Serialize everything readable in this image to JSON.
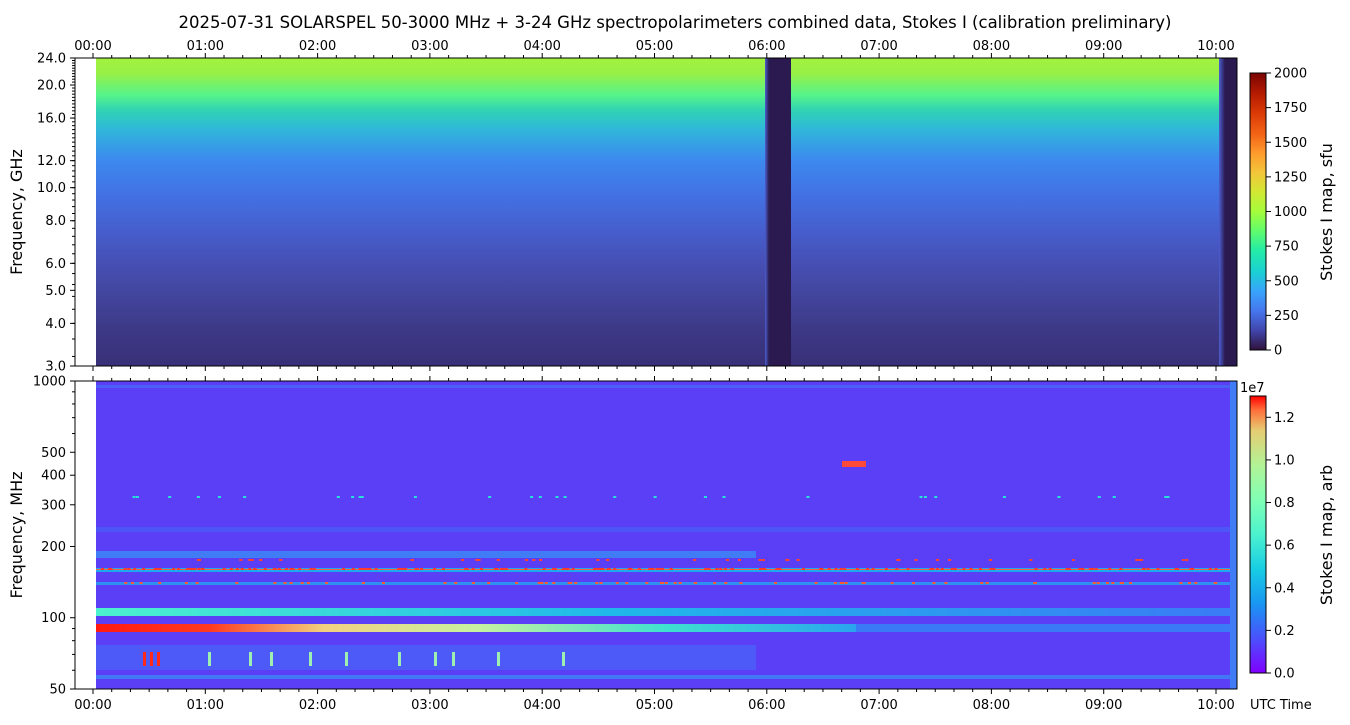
{
  "title": "2025-07-31  SOLARSPEL  50-3000 MHz  +  3-24 GHz  spectropolarimeters combined data,  Stokes I  (calibration preliminary)",
  "time_axis": {
    "labels": [
      "00:00",
      "01:00",
      "02:00",
      "03:00",
      "04:00",
      "05:00",
      "06:00",
      "07:00",
      "08:00",
      "09:00",
      "10:00"
    ],
    "bottom_title": "UTC Time"
  },
  "chart_data": [
    {
      "type": "heatmap",
      "panel": "top",
      "ylabel": "Frequency, GHz",
      "y_tick_labels": [
        "3.0",
        "4.0",
        "5.0",
        "6.0",
        "8.0",
        "10.0",
        "12.0",
        "16.0",
        "20.0",
        "24.0"
      ],
      "y_ticks": [
        3,
        4,
        5,
        6,
        8,
        10,
        12,
        16,
        20,
        24
      ],
      "y_scale": "log",
      "ylim": [
        3,
        24
      ],
      "xlim_hours": [
        0,
        10.22
      ],
      "colorbar": {
        "label": "Stokes I map, sfu",
        "ticks": [
          "0",
          "250",
          "500",
          "750",
          "1000",
          "1250",
          "1500",
          "1750",
          "2000"
        ],
        "range": [
          0,
          2000
        ],
        "colormap": "turbo"
      },
      "features": [
        {
          "name": "data gap",
          "start": "06:00",
          "end": "06:13"
        },
        {
          "name": "data end",
          "start": "10:09",
          "end": "10:13"
        }
      ]
    },
    {
      "type": "heatmap",
      "panel": "bottom",
      "ylabel": "Frequency, MHz",
      "y_tick_labels": [
        "50",
        "100",
        "200",
        "300",
        "400",
        "500",
        "1000"
      ],
      "y_ticks": [
        50,
        100,
        200,
        300,
        400,
        500,
        1000
      ],
      "y_scale": "log",
      "ylim": [
        50,
        1000
      ],
      "xlim_hours": [
        0,
        10.22
      ],
      "colorbar": {
        "label": "Stokes I map, arb",
        "ticks": [
          "0.0",
          "0.2",
          "0.4",
          "0.6",
          "0.8",
          "1.0",
          "1.2"
        ],
        "range": [
          0,
          1.3
        ],
        "exponent": "1e7",
        "colormap": "rainbow"
      },
      "features": [
        {
          "name": "bright band",
          "freq_mhz": 90
        },
        {
          "name": "band",
          "freq_mhz": 103
        },
        {
          "name": "band",
          "freq_mhz": 160
        },
        {
          "name": "band",
          "freq_mhz": 140
        }
      ]
    }
  ]
}
